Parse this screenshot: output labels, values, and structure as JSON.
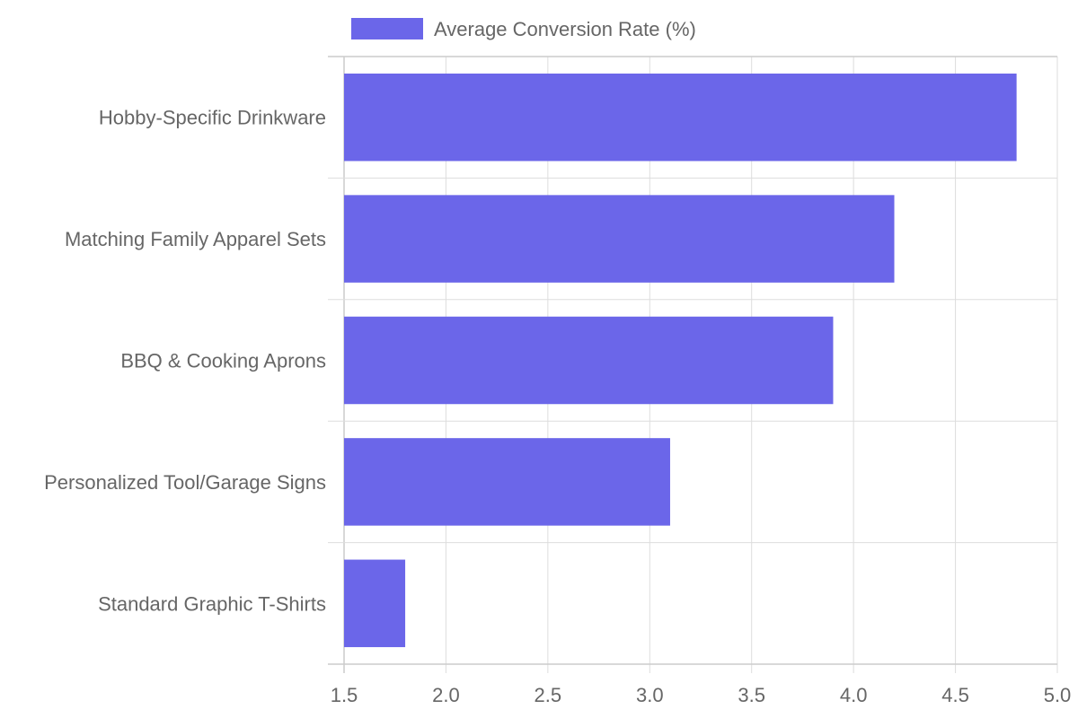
{
  "chart_data": {
    "type": "bar",
    "orientation": "horizontal",
    "categories": [
      "Hobby-Specific Drinkware",
      "Matching Family Apparel Sets",
      "BBQ & Cooking Aprons",
      "Personalized Tool/Garage Signs",
      "Standard Graphic T-Shirts"
    ],
    "series": [
      {
        "name": "Average Conversion Rate (%)",
        "values": [
          4.8,
          4.2,
          3.9,
          3.1,
          1.8
        ],
        "color": "#6b66e9"
      }
    ],
    "xlim": [
      1.5,
      5.0
    ],
    "xticks": [
      "1.5",
      "2.0",
      "2.5",
      "3.0",
      "3.5",
      "4.0",
      "4.5",
      "5.0"
    ],
    "grid": true,
    "legend_position": "top-center"
  }
}
